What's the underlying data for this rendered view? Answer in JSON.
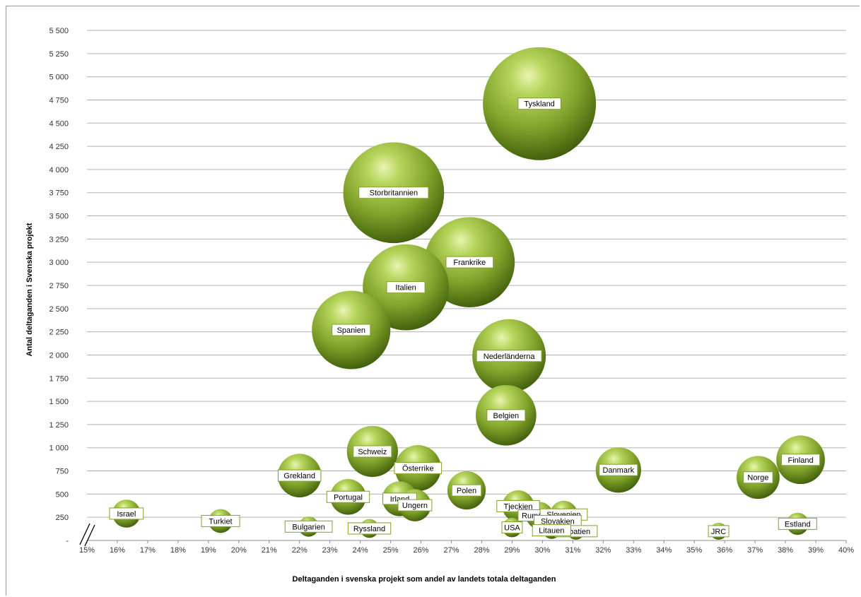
{
  "chart_data": {
    "type": "scatter",
    "title": "",
    "xlabel": "Deltaganden i svenska projekt som andel av landets totala deltaganden",
    "ylabel": "Antal deltaganden i Svenska projekt",
    "xlim": [
      15,
      40
    ],
    "ylim": [
      0,
      5500
    ],
    "x_ticks": [
      15,
      16,
      17,
      18,
      19,
      20,
      21,
      22,
      23,
      24,
      25,
      26,
      27,
      28,
      29,
      30,
      31,
      32,
      33,
      34,
      35,
      36,
      37,
      38,
      39,
      40
    ],
    "x_tick_labels": [
      "15%",
      "16%",
      "17%",
      "18%",
      "19%",
      "20%",
      "21%",
      "22%",
      "23%",
      "24%",
      "25%",
      "26%",
      "27%",
      "28%",
      "29%",
      "30%",
      "31%",
      "32%",
      "33%",
      "34%",
      "35%",
      "36%",
      "37%",
      "38%",
      "39%",
      "40%"
    ],
    "y_ticks": [
      0,
      250,
      500,
      750,
      1000,
      1250,
      1500,
      1750,
      2000,
      2250,
      2500,
      2750,
      3000,
      3250,
      3500,
      3750,
      4000,
      4250,
      4500,
      4750,
      5000,
      5250,
      5500
    ],
    "y_tick_labels": [
      "-",
      "250",
      "500",
      "750",
      "1 000",
      "1 250",
      "1 500",
      "1 750",
      "2 000",
      "2 250",
      "2 500",
      "2 750",
      "3 000",
      "3 250",
      "3 500",
      "3 750",
      "4 000",
      "4 250",
      "4 500",
      "4 750",
      "5 000",
      "5 250",
      "5 500"
    ],
    "grid": true,
    "axis_break": true,
    "bubble_color": "#8fb52e",
    "points": [
      {
        "label": "Tyskland",
        "x": 29.9,
        "y": 4710
      },
      {
        "label": "Storbritannien",
        "x": 25.1,
        "y": 3750
      },
      {
        "label": "Frankrike",
        "x": 27.6,
        "y": 3000
      },
      {
        "label": "Italien",
        "x": 25.5,
        "y": 2730
      },
      {
        "label": "Spanien",
        "x": 23.7,
        "y": 2270
      },
      {
        "label": "Nederländerna",
        "x": 28.9,
        "y": 1990
      },
      {
        "label": "Belgien",
        "x": 28.8,
        "y": 1350
      },
      {
        "label": "Schweiz",
        "x": 24.4,
        "y": 960
      },
      {
        "label": "Österrike",
        "x": 25.9,
        "y": 780
      },
      {
        "label": "Grekland",
        "x": 22.0,
        "y": 700
      },
      {
        "label": "Danmark",
        "x": 32.5,
        "y": 760
      },
      {
        "label": "Finland",
        "x": 38.5,
        "y": 870
      },
      {
        "label": "Norge",
        "x": 37.1,
        "y": 680
      },
      {
        "label": "Portugal",
        "x": 23.6,
        "y": 470
      },
      {
        "label": "Polen",
        "x": 27.5,
        "y": 540
      },
      {
        "label": "Irland",
        "x": 25.3,
        "y": 450
      },
      {
        "label": "Ungern",
        "x": 25.8,
        "y": 380
      },
      {
        "label": "Tjeckien",
        "x": 29.2,
        "y": 370
      },
      {
        "label": "Rumänien",
        "x": 29.9,
        "y": 270
      },
      {
        "label": "Slovenien",
        "x": 30.7,
        "y": 280
      },
      {
        "label": "Slovakien",
        "x": 30.5,
        "y": 210
      },
      {
        "label": "Kroatien",
        "x": 31.1,
        "y": 100
      },
      {
        "label": "Litauen",
        "x": 30.3,
        "y": 110
      },
      {
        "label": "USA",
        "x": 29.0,
        "y": 140
      },
      {
        "label": "Israel",
        "x": 16.3,
        "y": 290
      },
      {
        "label": "Turkiet",
        "x": 19.4,
        "y": 210
      },
      {
        "label": "Bulgarien",
        "x": 22.3,
        "y": 150
      },
      {
        "label": "Ryssland",
        "x": 24.3,
        "y": 130
      },
      {
        "label": "JRC",
        "x": 35.8,
        "y": 100
      },
      {
        "label": "Estland",
        "x": 38.4,
        "y": 180
      }
    ]
  }
}
